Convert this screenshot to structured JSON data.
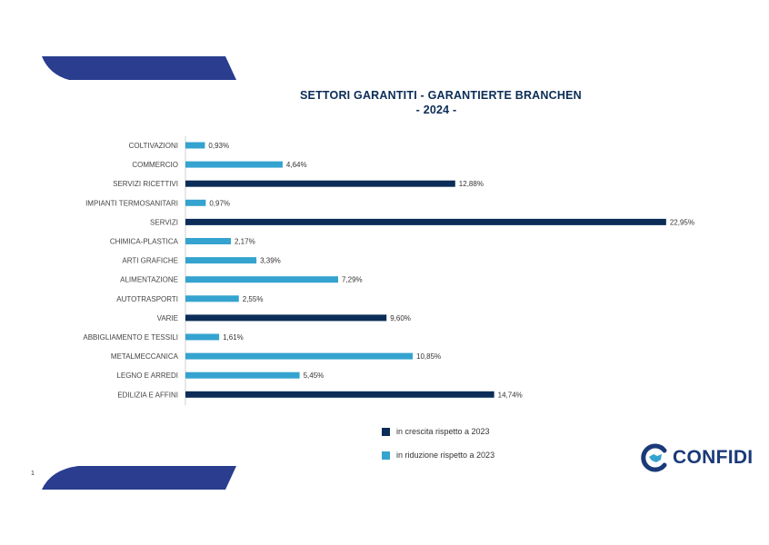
{
  "title_line1": "SETTORI GARANTITI - GARANTIERTE BRANCHEN",
  "title_line2": "- 2024 -",
  "page_number": "1",
  "logo_text": "CONFIDI",
  "colors": {
    "growth": "#0b2d57",
    "reduction": "#35a3cf",
    "accent_shape": "#2a3d8f",
    "logo": "#1a3a78"
  },
  "legend": [
    {
      "label": "in crescita rispetto a 2023",
      "color": "#0b2d57"
    },
    {
      "label": "in riduzione rispetto a 2023",
      "color": "#35a3cf"
    }
  ],
  "chart_data": {
    "type": "bar",
    "orientation": "horizontal",
    "categories": [
      "COLTIVAZIONI",
      "COMMERCIO",
      "SERVIZI RICETTIVI",
      "IMPIANTI TERMOSANITARI",
      "SERVIZI",
      "CHIMICA-PLASTICA",
      "ARTI GRAFICHE",
      "ALIMENTAZIONE",
      "AUTOTRASPORTI",
      "VARIE",
      "ABBIGLIAMENTO E TESSILI",
      "METALMECCANICA",
      "LEGNO E ARREDI",
      "EDILIZIA E AFFINI"
    ],
    "values": [
      0.93,
      4.64,
      12.88,
      0.97,
      22.95,
      2.17,
      3.39,
      7.29,
      2.55,
      9.6,
      1.61,
      10.85,
      5.45,
      14.74
    ],
    "value_labels": [
      "0,93%",
      "4,64%",
      "12,88%",
      "0,97%",
      "22,95%",
      "2,17%",
      "3,39%",
      "7,29%",
      "2,55%",
      "9,60%",
      "1,61%",
      "10,85%",
      "5,45%",
      "14,74%"
    ],
    "trend": [
      "reduction",
      "reduction",
      "growth",
      "reduction",
      "growth",
      "reduction",
      "reduction",
      "reduction",
      "reduction",
      "growth",
      "reduction",
      "reduction",
      "reduction",
      "growth"
    ],
    "xlim": [
      0,
      23
    ]
  }
}
